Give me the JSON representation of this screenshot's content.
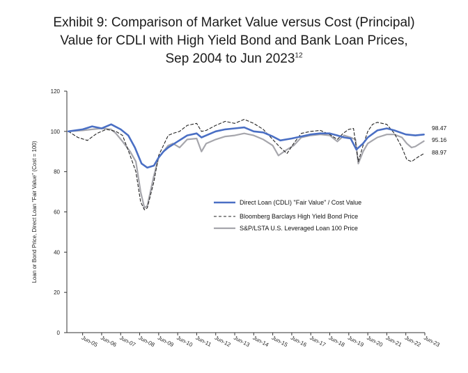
{
  "chart_data": {
    "type": "line",
    "title_lines": [
      "Exhibit 9: Comparison of Market Value versus Cost (Principal)",
      "Value for CDLI with High Yield Bond and Bank Loan Prices,",
      "Sep 2004 to Jun 2023"
    ],
    "title_superscript": "12",
    "ylabel": "Loan or Bond Price, Direct Loan \"Fair Value\" (Cost = 100)",
    "ylim": [
      0,
      120
    ],
    "yticks": [
      "0",
      "20",
      "40",
      "60",
      "80",
      "100",
      "120"
    ],
    "xlim": [
      2004.67,
      2023.5
    ],
    "xtick_labels": [
      "Jun-05",
      "Jun-06",
      "Jun-07",
      "Jun-08",
      "Jun-09",
      "Jun-10",
      "Jun-11",
      "Jun-12",
      "Jun-13",
      "Jun-14",
      "Jun-15",
      "Jun-16",
      "Jun-17",
      "Jun-18",
      "Jun-19",
      "Jun-20",
      "Jun-21",
      "Jun-22",
      "Jun-23"
    ],
    "xtick_values": [
      2005.5,
      2006.5,
      2007.5,
      2008.5,
      2009.5,
      2010.5,
      2011.5,
      2012.5,
      2013.5,
      2014.5,
      2015.5,
      2016.5,
      2017.5,
      2018.5,
      2019.5,
      2020.5,
      2021.5,
      2022.5,
      2023.5
    ],
    "grid": false,
    "legend_position": "center-right",
    "end_labels": [
      "98.47",
      "95.16",
      "88.97"
    ],
    "series": [
      {
        "name": "Direct Loan (CDLI) \"Fair Value\" / Cost Value",
        "color": "#4a6fc4",
        "style": "solid",
        "x": [
          2004.75,
          2005.5,
          2006.0,
          2006.5,
          2007.0,
          2007.5,
          2007.9,
          2008.25,
          2008.6,
          2008.9,
          2009.25,
          2009.5,
          2009.75,
          2010.0,
          2010.5,
          2011.0,
          2011.5,
          2011.75,
          2012.0,
          2012.5,
          2013.0,
          2013.5,
          2014.0,
          2014.5,
          2015.0,
          2015.5,
          2015.9,
          2016.5,
          2017.0,
          2017.5,
          2018.0,
          2018.5,
          2018.9,
          2019.25,
          2019.6,
          2019.9,
          2020.25,
          2020.5,
          2021.0,
          2021.5,
          2021.9,
          2022.5,
          2023.0,
          2023.45
        ],
        "y": [
          100,
          101,
          102.5,
          101.5,
          103.5,
          101,
          98,
          92,
          84,
          82,
          83,
          87,
          90,
          92,
          95,
          98,
          99,
          97,
          98,
          100,
          101,
          101.5,
          102,
          100,
          99.5,
          97.5,
          95.5,
          96.5,
          97.5,
          98.5,
          99,
          99,
          98,
          97,
          96.5,
          91,
          94,
          97,
          100.5,
          101.5,
          100.5,
          98.5,
          98,
          98.47
        ]
      },
      {
        "name": "Bloomberg Barclays High Yield Bond Price",
        "color": "#222222",
        "style": "dashed",
        "x": [
          2004.75,
          2005.25,
          2005.75,
          2006.25,
          2006.75,
          2007.25,
          2007.6,
          2008.0,
          2008.3,
          2008.55,
          2008.75,
          2008.9,
          2009.25,
          2009.5,
          2010.0,
          2010.25,
          2010.6,
          2011.0,
          2011.5,
          2011.75,
          2012.0,
          2012.5,
          2013.0,
          2013.5,
          2014.0,
          2014.5,
          2015.0,
          2015.5,
          2015.9,
          2016.25,
          2016.6,
          2017.0,
          2017.5,
          2018.0,
          2018.5,
          2018.9,
          2019.2,
          2019.5,
          2019.75,
          2020.0,
          2020.25,
          2020.5,
          2020.75,
          2021.0,
          2021.5,
          2021.9,
          2022.3,
          2022.55,
          2022.8,
          2023.1,
          2023.45
        ],
        "y": [
          100,
          97,
          95.5,
          99,
          101,
          100,
          98,
          88,
          80,
          65,
          61,
          62,
          75,
          88,
          98,
          99,
          100,
          103,
          104,
          100,
          100.5,
          103,
          105,
          104,
          106,
          104,
          101,
          96,
          92,
          89,
          94,
          99,
          100,
          100.5,
          98.5,
          96,
          99,
          101,
          101.5,
          85,
          93,
          100,
          103.5,
          104.5,
          103.5,
          99,
          92,
          86,
          85,
          87,
          88.97
        ]
      },
      {
        "name": "S&P/LSTA U.S. Leveraged Loan 100 Price",
        "color": "#a6a6ac",
        "style": "solid",
        "x": [
          2004.75,
          2005.5,
          2006.0,
          2006.5,
          2007.0,
          2007.25,
          2007.6,
          2008.0,
          2008.3,
          2008.55,
          2008.75,
          2008.9,
          2009.25,
          2009.5,
          2010.0,
          2010.25,
          2010.6,
          2011.0,
          2011.5,
          2011.75,
          2012.0,
          2012.5,
          2013.0,
          2013.5,
          2014.0,
          2014.5,
          2015.0,
          2015.5,
          2015.8,
          2016.25,
          2016.6,
          2017.0,
          2017.5,
          2018.0,
          2018.5,
          2018.9,
          2019.25,
          2019.6,
          2019.85,
          2020.0,
          2020.25,
          2020.5,
          2020.75,
          2021.0,
          2021.5,
          2021.9,
          2022.3,
          2022.55,
          2022.8,
          2023.0,
          2023.45
        ],
        "y": [
          100,
          100.5,
          101,
          101.5,
          101,
          99,
          95,
          90,
          85,
          70,
          62,
          63,
          78,
          87,
          93,
          94,
          92,
          96,
          96.5,
          90,
          94,
          96,
          97.5,
          98,
          99,
          98,
          96,
          93,
          88,
          91,
          93,
          97,
          98,
          98.5,
          98,
          95,
          98,
          97,
          96,
          84,
          90,
          94,
          95.5,
          97,
          98.5,
          98.5,
          97,
          94,
          92,
          92.5,
          95.16
        ]
      }
    ]
  }
}
